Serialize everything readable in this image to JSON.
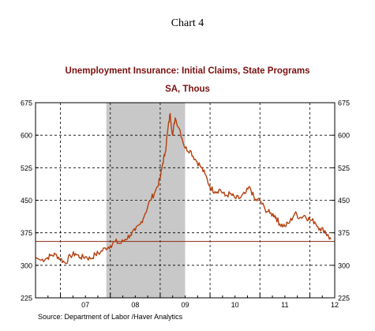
{
  "header": {
    "chart_number": "Chart 4"
  },
  "chart_data": {
    "type": "line",
    "title": "Unemployment Insurance: Initial Claims, State Programs",
    "subtitle": "SA, Thous",
    "source": "Source:  Department of Labor /Haver Analytics",
    "x_tick_labels": [
      "07",
      "08",
      "09",
      "10",
      "11",
      "12"
    ],
    "y_ticks": [
      225,
      300,
      375,
      450,
      525,
      600,
      675
    ],
    "y_tick_labels": [
      "225",
      "300",
      "375",
      "450",
      "525",
      "600",
      "675"
    ],
    "xlim": [
      2006.5,
      2012.5
    ],
    "ylim": [
      225,
      675
    ],
    "grid": true,
    "recession_band": [
      2007.92,
      2009.5
    ],
    "reference_line": 355,
    "colors": {
      "series": "#b5400e",
      "title": "#7a1010",
      "recession": "#c8c8c8",
      "reference": "#8b2a10"
    },
    "series": [
      {
        "x": [
          2006.5,
          2006.6,
          2006.7,
          2006.8,
          2006.9,
          2007.0,
          2007.1,
          2007.2,
          2007.3,
          2007.4,
          2007.5,
          2007.6,
          2007.7,
          2007.8,
          2007.9,
          2008.0,
          2008.1,
          2008.2,
          2008.3,
          2008.4,
          2008.5,
          2008.6,
          2008.7,
          2008.8,
          2008.9,
          2009.0,
          2009.05,
          2009.1,
          2009.15,
          2009.2,
          2009.25,
          2009.3,
          2009.4,
          2009.5,
          2009.6,
          2009.7,
          2009.8,
          2009.9,
          2010.0,
          2010.1,
          2010.2,
          2010.3,
          2010.4,
          2010.5,
          2010.6,
          2010.7,
          2010.8,
          2010.9,
          2011.0,
          2011.1,
          2011.2,
          2011.3,
          2011.35,
          2011.4,
          2011.5,
          2011.6,
          2011.7,
          2011.8,
          2011.9,
          2012.0,
          2012.1,
          2012.2,
          2012.3,
          2012.35,
          2012.42
        ],
        "values": [
          318,
          312,
          315,
          322,
          325,
          315,
          305,
          322,
          327,
          318,
          320,
          315,
          325,
          330,
          340,
          345,
          355,
          350,
          360,
          370,
          380,
          395,
          420,
          450,
          470,
          500,
          535,
          560,
          610,
          650,
          600,
          640,
          610,
          570,
          565,
          545,
          530,
          510,
          480,
          470,
          475,
          460,
          465,
          455,
          455,
          465,
          480,
          450,
          450,
          430,
          420,
          415,
          405,
          395,
          390,
          400,
          420,
          410,
          415,
          405,
          400,
          385,
          380,
          370,
          360
        ]
      }
    ]
  }
}
